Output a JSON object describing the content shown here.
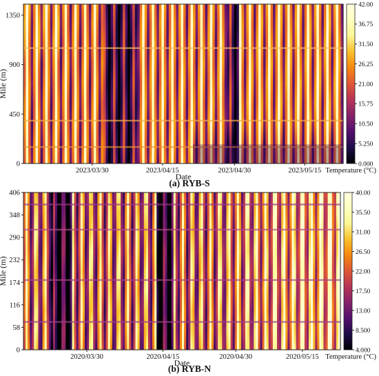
{
  "chart_data": [
    {
      "type": "heatmap",
      "caption": "(a) RYB-S",
      "xlabel": "Date",
      "ylabel": "Mile (m)",
      "x_ticks": [
        "2023/03/30",
        "2023/04/15",
        "2023/04/30",
        "2023/05/15"
      ],
      "y_ticks": [
        "0",
        "450",
        "900",
        "1350"
      ],
      "ylim": [
        0,
        1450
      ],
      "colorbar": {
        "label": "Temperature (°C)",
        "ticks": [
          "0.000",
          "5.250",
          "10.50",
          "15.75",
          "21.00",
          "26.25",
          "31.50",
          "36.75",
          "42.00"
        ],
        "range": [
          0,
          42
        ]
      },
      "colormap": "inferno",
      "features": {
        "daily_cycles": 33,
        "cold_period_days": [
          [
            15,
            21
          ],
          [
            38,
            40
          ]
        ],
        "horizontal_bands_mile": [
          390,
          1050
        ],
        "lower_segment_change_mile": 150
      }
    },
    {
      "type": "heatmap",
      "caption": "(b) RYB-N",
      "xlabel": "Date",
      "ylabel": "Mile (m)",
      "x_ticks": [
        "2020/03/30",
        "2020/04/15",
        "2020/04/30",
        "2020/05/15"
      ],
      "y_ticks": [
        "0",
        "58",
        "116",
        "174",
        "232",
        "290",
        "348",
        "406"
      ],
      "ylim": [
        0,
        406
      ],
      "colorbar": {
        "label": "Temperature (°C)",
        "ticks": [
          "4.000",
          "8.500",
          "13.00",
          "17.50",
          "22.00",
          "26.50",
          "31.00",
          "35.50",
          "40.00"
        ],
        "range": [
          4,
          40
        ]
      },
      "colormap": "inferno",
      "features": {
        "daily_cycles": 58,
        "cold_period_days": [
          [
            5,
            9
          ],
          [
            25,
            28
          ]
        ],
        "horizontal_bands_mile": [
          72,
          180,
          310,
          375
        ],
        "warm_period_days": [
          [
            50,
            58
          ]
        ]
      }
    }
  ]
}
